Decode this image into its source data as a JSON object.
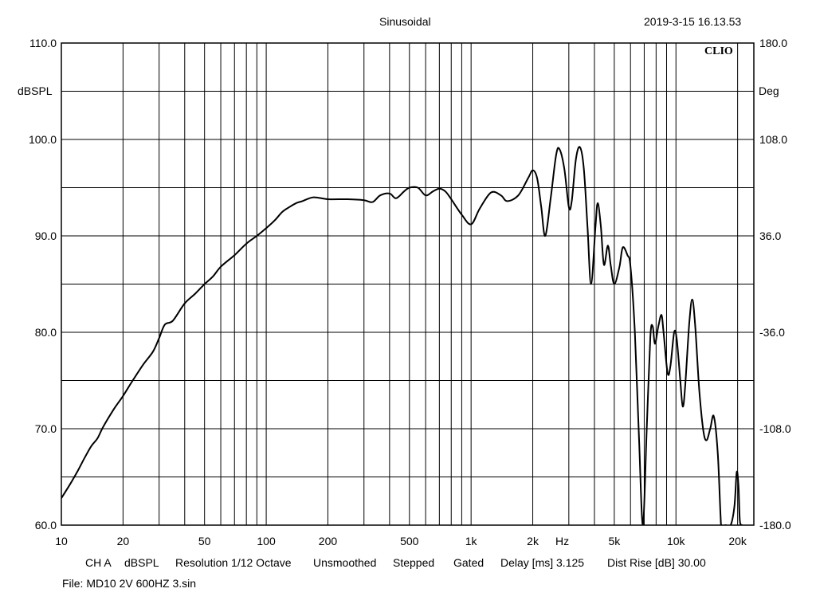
{
  "header": {
    "title": "Sinusoidal",
    "timestamp": "2019-3-15 16.13.53",
    "brand": "CLIO"
  },
  "footer": {
    "channel": "CH A",
    "unit": "dBSPL",
    "resolution": "Resolution 1/12 Octave",
    "smoothing": "Unsmoothed",
    "mode": "Stepped",
    "gating": "Gated",
    "delay": "Delay [ms] 3.125",
    "dist_rise": "Dist Rise [dB] 30.00",
    "file": "File: MD10 2V 600HZ 3.sin"
  },
  "chart_data": {
    "type": "line",
    "x_scale": "log",
    "grid": true,
    "xlim": [
      10,
      24000
    ],
    "ylim": [
      60,
      110
    ],
    "y2lim": [
      -180,
      180
    ],
    "xlabel": "Hz",
    "ylabel": "dBSPL",
    "y2label": "Deg",
    "x_ticks": [
      {
        "value": 10,
        "label": "10"
      },
      {
        "value": 20,
        "label": "20"
      },
      {
        "value": 50,
        "label": "50"
      },
      {
        "value": 100,
        "label": "100"
      },
      {
        "value": 200,
        "label": "200"
      },
      {
        "value": 500,
        "label": "500"
      },
      {
        "value": 1000,
        "label": "1k"
      },
      {
        "value": 2000,
        "label": "2k"
      },
      {
        "value": 5000,
        "label": "5k"
      },
      {
        "value": 10000,
        "label": "10k"
      },
      {
        "value": 20000,
        "label": "20k"
      }
    ],
    "y_ticks": [
      {
        "value": 110,
        "label": "110.0"
      },
      {
        "value": 100,
        "label": "100.0"
      },
      {
        "value": 90,
        "label": "90.0"
      },
      {
        "value": 80,
        "label": "80.0"
      },
      {
        "value": 70,
        "label": "70.0"
      },
      {
        "value": 60,
        "label": "60.0"
      }
    ],
    "y2_ticks": [
      {
        "value": 180,
        "label": "180.0"
      },
      {
        "value": 108,
        "label": "108.0"
      },
      {
        "value": 36,
        "label": "36.0"
      },
      {
        "value": -36,
        "label": "-36.0"
      },
      {
        "value": -108,
        "label": "-108.0"
      },
      {
        "value": -180,
        "label": "-180.0"
      }
    ],
    "series": [
      {
        "color": "#000000",
        "points": [
          [
            10,
            62.8
          ],
          [
            11,
            64.2
          ],
          [
            12,
            65.6
          ],
          [
            13,
            67.0
          ],
          [
            14,
            68.2
          ],
          [
            15,
            69.0
          ],
          [
            16,
            70.2
          ],
          [
            18,
            72.0
          ],
          [
            20,
            73.4
          ],
          [
            22,
            74.8
          ],
          [
            25,
            76.6
          ],
          [
            28,
            78.0
          ],
          [
            30,
            79.4
          ],
          [
            32,
            80.8
          ],
          [
            35,
            81.2
          ],
          [
            40,
            83.0
          ],
          [
            45,
            84.0
          ],
          [
            50,
            85.0
          ],
          [
            55,
            85.8
          ],
          [
            60,
            86.8
          ],
          [
            70,
            88.0
          ],
          [
            80,
            89.2
          ],
          [
            90,
            90.0
          ],
          [
            100,
            90.8
          ],
          [
            110,
            91.6
          ],
          [
            120,
            92.5
          ],
          [
            130,
            93.0
          ],
          [
            140,
            93.4
          ],
          [
            150,
            93.6
          ],
          [
            170,
            94.0
          ],
          [
            200,
            93.8
          ],
          [
            250,
            93.8
          ],
          [
            300,
            93.7
          ],
          [
            330,
            93.5
          ],
          [
            360,
            94.2
          ],
          [
            400,
            94.4
          ],
          [
            430,
            93.9
          ],
          [
            470,
            94.6
          ],
          [
            500,
            95.0
          ],
          [
            550,
            95.0
          ],
          [
            600,
            94.2
          ],
          [
            650,
            94.6
          ],
          [
            700,
            94.9
          ],
          [
            750,
            94.6
          ],
          [
            800,
            93.8
          ],
          [
            900,
            92.2
          ],
          [
            1000,
            91.2
          ],
          [
            1100,
            92.8
          ],
          [
            1250,
            94.5
          ],
          [
            1400,
            94.2
          ],
          [
            1500,
            93.6
          ],
          [
            1700,
            94.2
          ],
          [
            1900,
            96.0
          ],
          [
            2000,
            96.8
          ],
          [
            2100,
            96.0
          ],
          [
            2200,
            93.0
          ],
          [
            2300,
            90.0
          ],
          [
            2450,
            94.0
          ],
          [
            2600,
            98.4
          ],
          [
            2700,
            99.0
          ],
          [
            2850,
            97.0
          ],
          [
            3000,
            93.0
          ],
          [
            3100,
            93.6
          ],
          [
            3250,
            98.0
          ],
          [
            3400,
            99.2
          ],
          [
            3550,
            97.0
          ],
          [
            3700,
            91.0
          ],
          [
            3850,
            85.0
          ],
          [
            4050,
            91.0
          ],
          [
            4150,
            93.4
          ],
          [
            4300,
            91.0
          ],
          [
            4450,
            87.0
          ],
          [
            4650,
            89.0
          ],
          [
            4800,
            87.0
          ],
          [
            5000,
            85.0
          ],
          [
            5300,
            86.8
          ],
          [
            5500,
            88.8
          ],
          [
            5800,
            88.0
          ],
          [
            6000,
            86.8
          ],
          [
            6300,
            80.0
          ],
          [
            6600,
            69.0
          ],
          [
            6900,
            60.0
          ],
          [
            7200,
            70.0
          ],
          [
            7500,
            79.5
          ],
          [
            7700,
            80.6
          ],
          [
            7900,
            78.8
          ],
          [
            8200,
            80.6
          ],
          [
            8500,
            81.8
          ],
          [
            8700,
            80.0
          ],
          [
            9100,
            75.8
          ],
          [
            9400,
            76.5
          ],
          [
            9800,
            80.0
          ],
          [
            10100,
            79.2
          ],
          [
            10500,
            75.0
          ],
          [
            10800,
            72.3
          ],
          [
            11100,
            74.5
          ],
          [
            11600,
            80.8
          ],
          [
            12000,
            83.4
          ],
          [
            12400,
            80.8
          ],
          [
            13000,
            74.0
          ],
          [
            13600,
            69.8
          ],
          [
            14100,
            68.8
          ],
          [
            14700,
            70.0
          ],
          [
            15300,
            71.3
          ],
          [
            16000,
            67.5
          ],
          [
            16500,
            61.0
          ],
          [
            16700,
            60.0
          ],
          [
            17500,
            60.0
          ],
          [
            18500,
            60.0
          ],
          [
            19300,
            62.0
          ],
          [
            19800,
            65.5
          ],
          [
            20200,
            64.0
          ],
          [
            20500,
            60.5
          ],
          [
            21000,
            60.0
          ]
        ]
      }
    ]
  }
}
